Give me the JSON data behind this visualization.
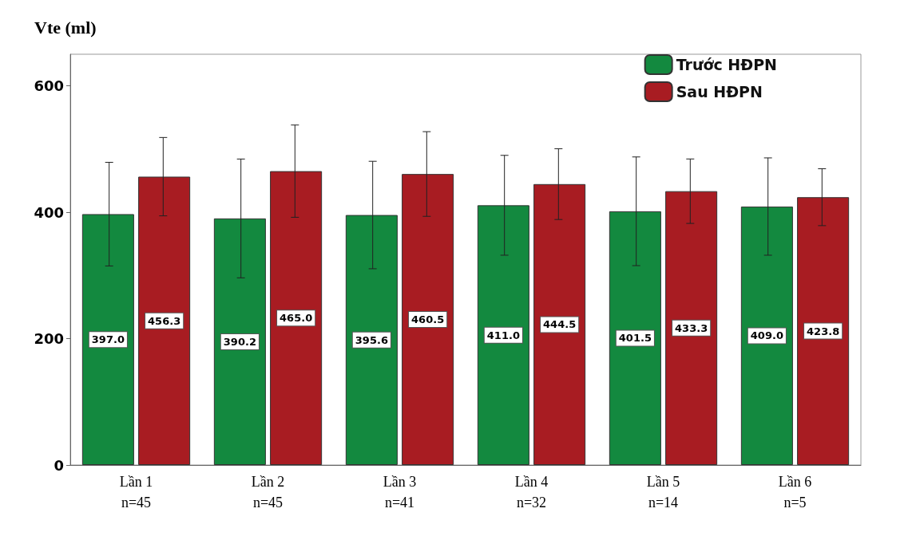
{
  "chart_data": {
    "type": "bar",
    "ylabel": "Vte (ml)",
    "categories": [
      "Lần 1\nn=45",
      "Lần 2\nn=45",
      "Lần 3\nn=41",
      "Lần 4\nn=32",
      "Lần 5\nn=14",
      "Lần 6\nn=5"
    ],
    "series": [
      {
        "name": "Trước HĐPN",
        "color": "#13893f",
        "values": [
          397.0,
          390.2,
          395.6,
          411.0,
          401.5,
          409.0
        ],
        "value_labels": [
          "397.0",
          "390.2",
          "395.6",
          "411.0",
          "401.5",
          "409.0"
        ],
        "errors": [
          82,
          94,
          85,
          79,
          86,
          77
        ]
      },
      {
        "name": "Sau HĐPN",
        "color": "#a81c22",
        "values": [
          456.3,
          465.0,
          460.5,
          444.5,
          433.3,
          423.8
        ],
        "value_labels": [
          "456.3",
          "465.0",
          "460.5",
          "444.5",
          "433.3",
          "423.8"
        ],
        "errors": [
          62,
          73,
          67,
          56,
          51,
          45
        ]
      }
    ],
    "ylim": [
      0,
      650
    ],
    "yticks": [
      0,
      200,
      400,
      600
    ],
    "grid": false,
    "legend": "top right"
  }
}
